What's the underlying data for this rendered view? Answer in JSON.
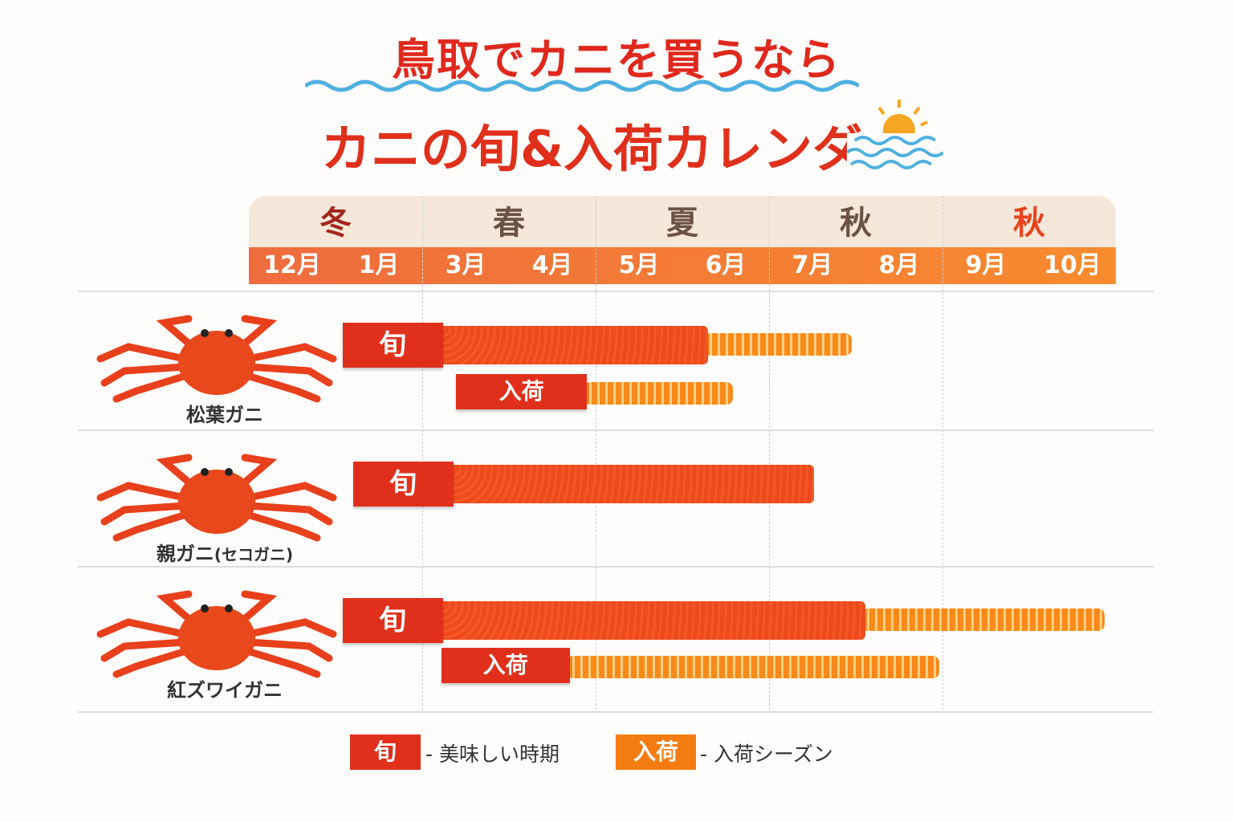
{
  "title": {
    "line1": "鳥取でカニを買うなら",
    "line2": "カニの旬&入荷カレンダー"
  },
  "chart_data": {
    "type": "gantt",
    "seasons": [
      "冬",
      "春",
      "夏",
      "秋",
      "秋"
    ],
    "season_colors": [
      "#a3251c",
      "#6a5244",
      "#6a5244",
      "#6a5244",
      "#e8421c"
    ],
    "months": [
      "12月",
      "1月",
      "3月",
      "4月",
      "5月",
      "6月",
      "7月",
      "8月",
      "9月",
      "10月"
    ],
    "rows": [
      {
        "name": "松葉ガニ",
        "shun": {
          "label": "旬",
          "start": 1.08,
          "solid_end": 5.3,
          "end": 7.0
        },
        "nyuka": {
          "label": "入荷",
          "start": 2.39,
          "solid_end": 3.9,
          "end": 5.58
        }
      },
      {
        "name": "親ガニ",
        "sub": "(セコガニ)",
        "shun": {
          "label": "旬",
          "start": 1.2,
          "solid_end": 6.52,
          "end": 6.52
        }
      },
      {
        "name": "紅ズワイガニ",
        "shun": {
          "label": "旬",
          "start": 1.08,
          "solid_end": 7.11,
          "end": 9.92
        },
        "nyuka": {
          "label": "入荷",
          "start": 2.22,
          "solid_end": 3.7,
          "end": 7.96
        }
      }
    ],
    "colors": {
      "shun": "#e0301c",
      "nyuka": "#f57c12"
    }
  },
  "legend": [
    {
      "box": "旬",
      "text": "美味しい時期",
      "color": "#e0301c"
    },
    {
      "box": "入荷",
      "text": "入荷シーズン",
      "color": "#f57c12"
    }
  ]
}
